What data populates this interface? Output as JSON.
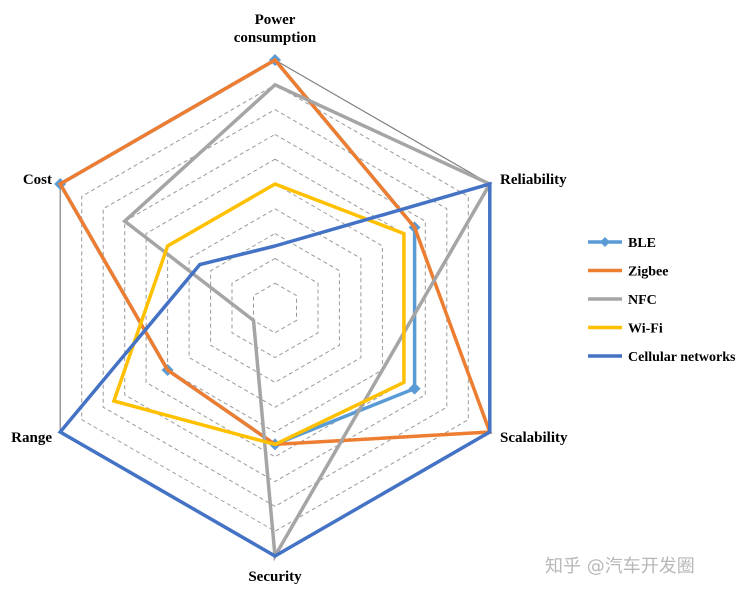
{
  "chart_data": {
    "type": "radar",
    "axes": [
      "Power consumption",
      "Reliability",
      "Scalability",
      "Security",
      "Range",
      "Cost"
    ],
    "axis_label_lines": [
      [
        "Power",
        "consumption"
      ],
      [
        "Reliability"
      ],
      [
        "Scalability"
      ],
      [
        "Security"
      ],
      [
        "Range"
      ],
      [
        "Cost"
      ]
    ],
    "range": [
      0,
      10
    ],
    "grid_levels": 10,
    "series": [
      {
        "name": "BLE",
        "color": "#5b9bd5",
        "marker": "diamond",
        "values": [
          10,
          6.5,
          6.5,
          5.5,
          5.0,
          10
        ]
      },
      {
        "name": "Zigbee",
        "color": "#ed7d31",
        "marker": "none",
        "values": [
          10,
          6.5,
          10,
          5.5,
          5.0,
          10
        ]
      },
      {
        "name": "NFC",
        "color": "#a5a5a5",
        "marker": "none",
        "values": [
          9.0,
          10,
          5.0,
          10,
          1.0,
          7.0
        ]
      },
      {
        "name": "Wi-Fi",
        "color": "#ffc000",
        "marker": "none",
        "values": [
          5.0,
          6.0,
          6.0,
          5.5,
          7.5,
          5.0
        ]
      },
      {
        "name": "Cellular networks",
        "color": "#4472c4",
        "marker": "none",
        "values": [
          2.5,
          10,
          10,
          10,
          10,
          3.5
        ]
      }
    ]
  },
  "watermark": "知乎 @汽车开发圈"
}
